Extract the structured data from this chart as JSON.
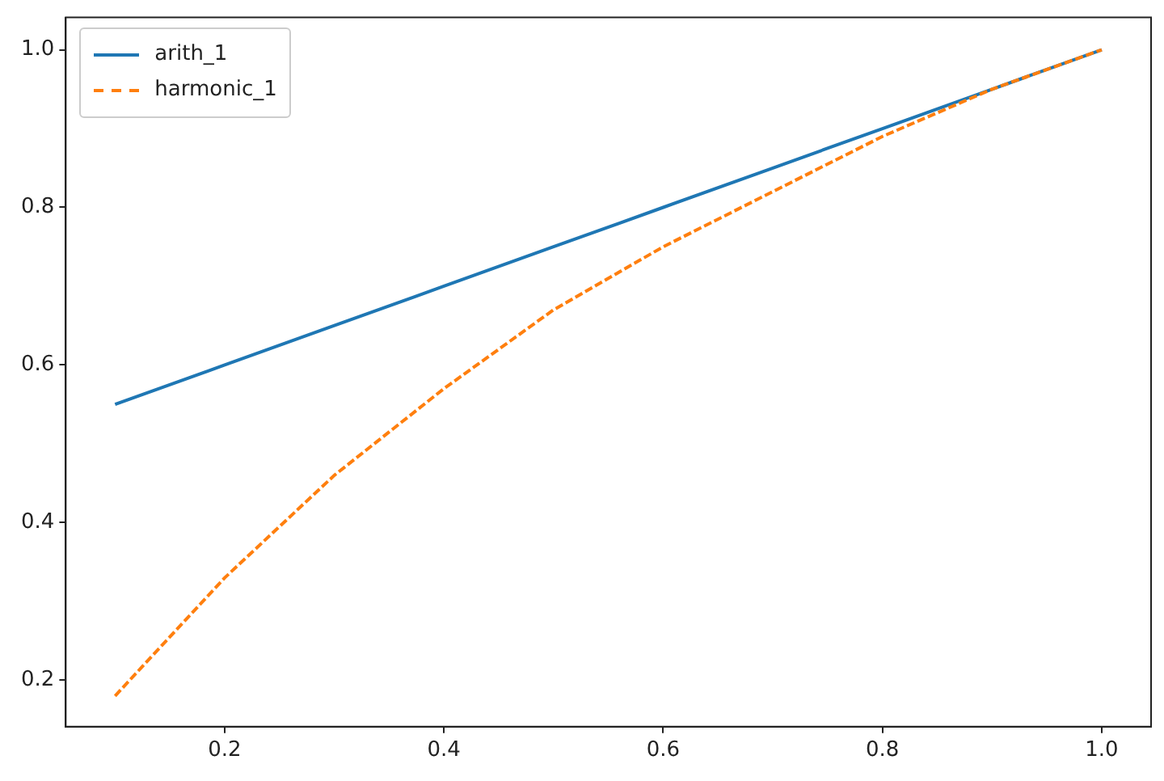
{
  "chart_data": {
    "type": "line",
    "x": [
      0.1,
      0.2,
      0.3,
      0.4,
      0.5,
      0.6,
      0.7,
      0.8,
      0.9,
      1.0
    ],
    "series": [
      {
        "name": "arith_1",
        "color": "#1f77b4",
        "line_style": "solid",
        "values": [
          0.55,
          0.6,
          0.65,
          0.7,
          0.75,
          0.8,
          0.85,
          0.9,
          0.95,
          1.0
        ]
      },
      {
        "name": "harmonic_1",
        "color": "#ff7f0e",
        "line_style": "dashed",
        "values": [
          0.18,
          0.33,
          0.46,
          0.57,
          0.67,
          0.75,
          0.82,
          0.89,
          0.95,
          1.0
        ]
      }
    ],
    "xlim": [
      0.055,
      1.045
    ],
    "ylim": [
      0.141,
      1.041
    ],
    "xticks": [
      0.2,
      0.4,
      0.6,
      0.8,
      {
        "value": 1,
        "label": "1.0"
      }
    ],
    "yticks": [
      0.2,
      0.4,
      0.6,
      0.8,
      {
        "value": 1,
        "label": "1.0"
      }
    ],
    "grid": false,
    "legend": "top left",
    "marker": "none"
  }
}
